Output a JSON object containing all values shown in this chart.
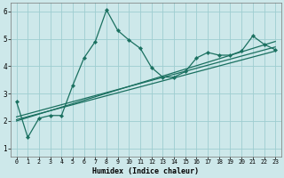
{
  "xlabel": "Humidex (Indice chaleur)",
  "bg_color": "#cde8ea",
  "grid_color": "#9ecdd0",
  "line_color": "#1a7060",
  "xlim": [
    -0.5,
    23.5
  ],
  "ylim": [
    0.7,
    6.3
  ],
  "xticks": [
    0,
    1,
    2,
    3,
    4,
    5,
    6,
    7,
    8,
    9,
    10,
    11,
    12,
    13,
    14,
    15,
    16,
    17,
    18,
    19,
    20,
    21,
    22,
    23
  ],
  "yticks": [
    1,
    2,
    3,
    4,
    5,
    6
  ],
  "main_x": [
    0,
    1,
    2,
    3,
    4,
    5,
    6,
    7,
    8,
    9,
    10,
    11,
    12,
    13,
    14,
    15,
    16,
    17,
    18,
    19,
    20,
    21,
    22,
    23
  ],
  "main_y": [
    2.7,
    1.4,
    2.1,
    2.2,
    2.2,
    3.3,
    4.3,
    4.9,
    6.05,
    5.3,
    4.95,
    4.65,
    3.95,
    3.6,
    3.6,
    3.8,
    4.3,
    4.5,
    4.4,
    4.4,
    4.55,
    5.1,
    4.8,
    4.6
  ],
  "trend1_x": [
    0,
    23
  ],
  "trend1_y": [
    2.0,
    4.9
  ],
  "trend2_x": [
    0,
    23
  ],
  "trend2_y": [
    2.15,
    4.7
  ],
  "trend3_x": [
    0,
    23
  ],
  "trend3_y": [
    2.05,
    4.55
  ]
}
